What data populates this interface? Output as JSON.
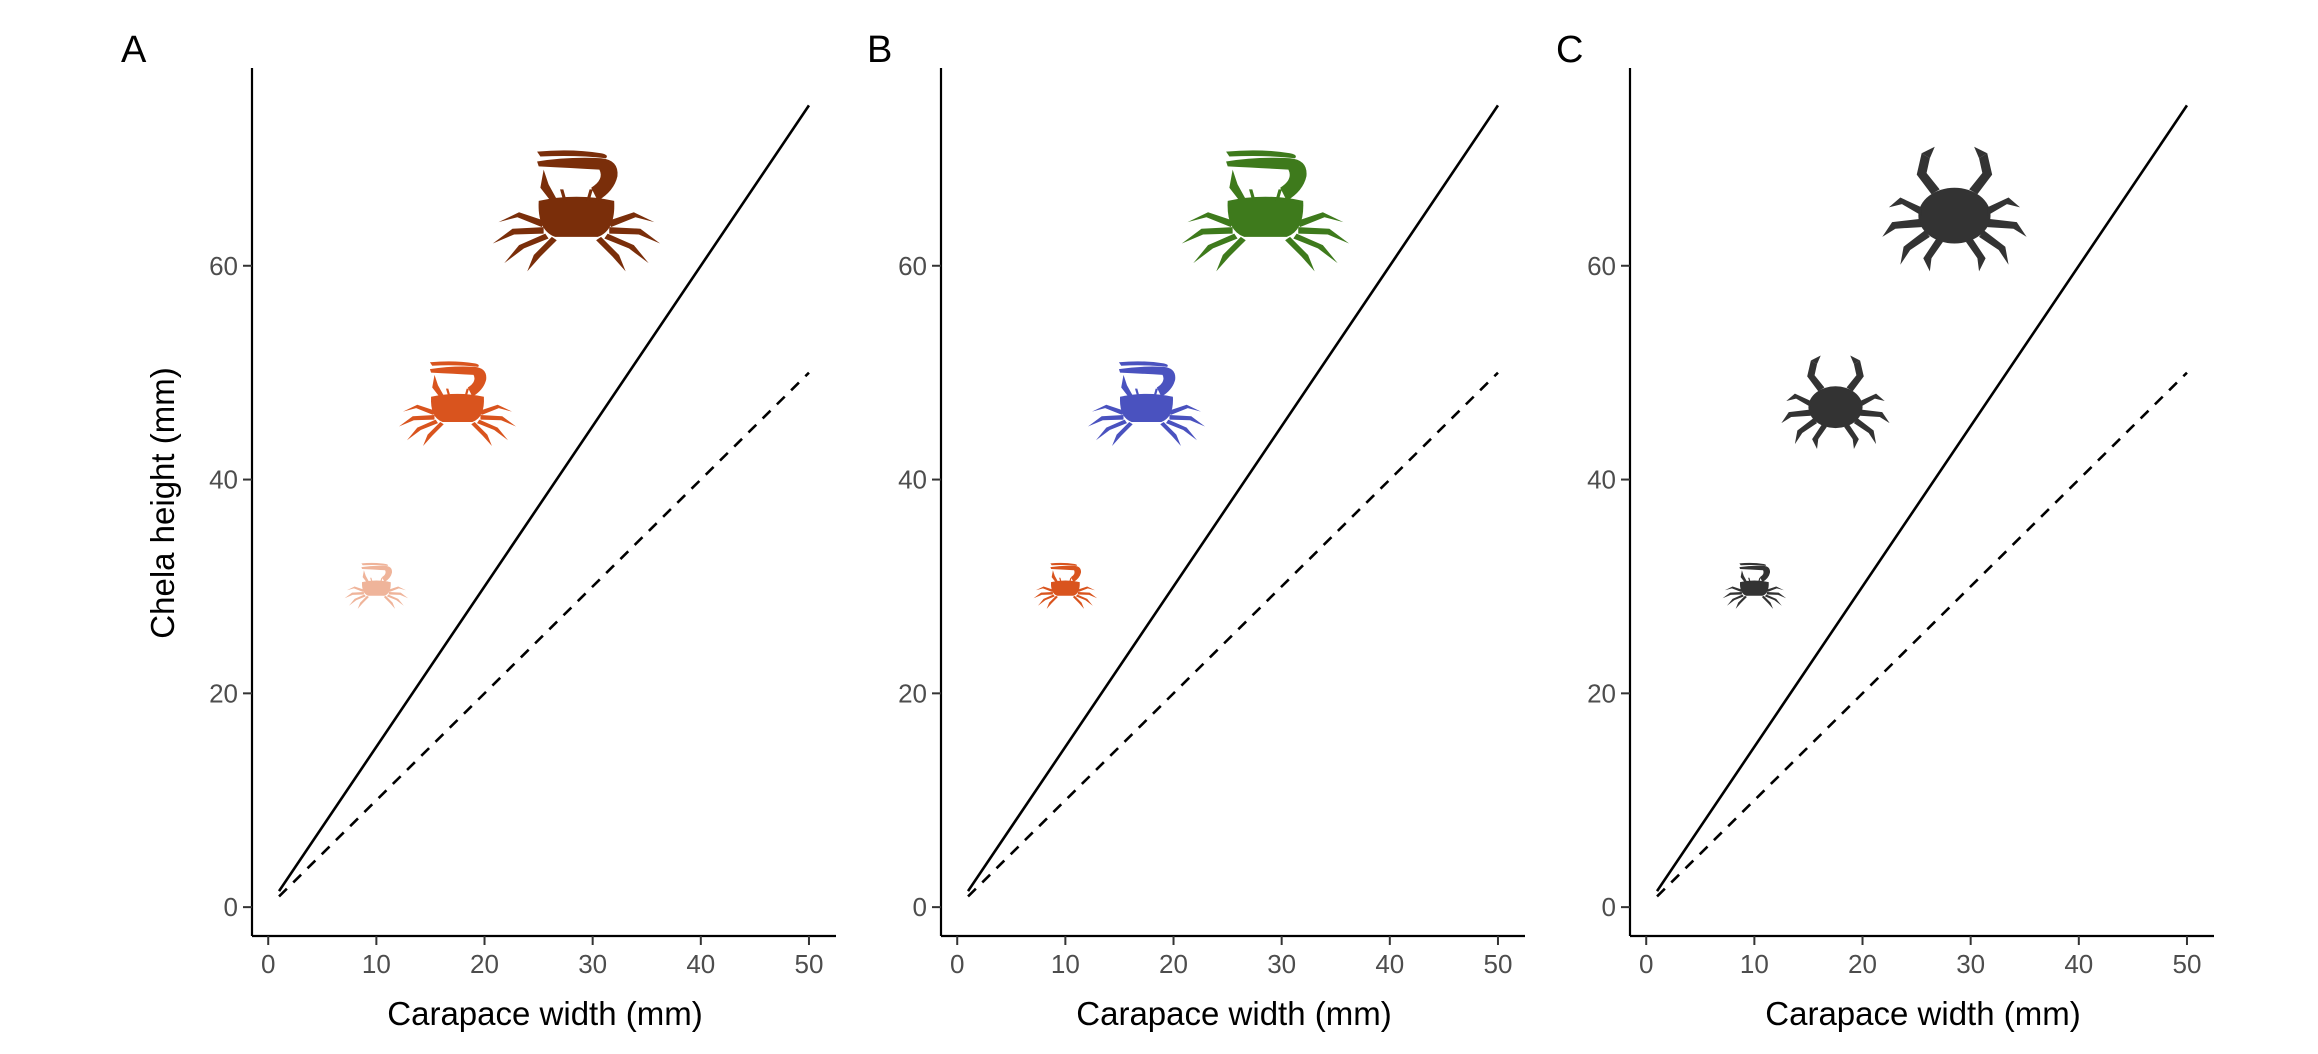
{
  "figure": {
    "panels": [
      {
        "letter": "A",
        "xlabel": "Carapace width (mm)",
        "ylabel": "Chela height (mm)",
        "crabs": [
          {
            "icon": "fiddler-crab-icon",
            "color": "#7a2e0a",
            "x": 28.5,
            "y": 65,
            "scale": 1.0
          },
          {
            "icon": "fiddler-crab-icon",
            "color": "#d9541e",
            "x": 17.5,
            "y": 47,
            "scale": 0.7
          },
          {
            "icon": "fiddler-crab-icon",
            "color": "#efb49a",
            "x": 10,
            "y": 30,
            "scale": 0.38
          }
        ]
      },
      {
        "letter": "B",
        "xlabel": "Carapace width (mm)",
        "ylabel": "",
        "crabs": [
          {
            "icon": "fiddler-crab-icon",
            "color": "#3e7a1c",
            "x": 28.5,
            "y": 65,
            "scale": 1.0
          },
          {
            "icon": "fiddler-crab-icon",
            "color": "#4a52bf",
            "x": 17.5,
            "y": 47,
            "scale": 0.7
          },
          {
            "icon": "fiddler-crab-icon",
            "color": "#d9541e",
            "x": 10,
            "y": 30,
            "scale": 0.38
          }
        ]
      },
      {
        "letter": "C",
        "xlabel": "Carapace width (mm)",
        "ylabel": "",
        "crabs": [
          {
            "icon": "swimming-crab-icon",
            "color": "#333333",
            "x": 28.5,
            "y": 65,
            "scale": 1.0
          },
          {
            "icon": "swimming-crab-icon",
            "color": "#333333",
            "x": 17.5,
            "y": 47,
            "scale": 0.75
          },
          {
            "icon": "fiddler-crab-icon",
            "color": "#333333",
            "x": 10,
            "y": 30,
            "scale": 0.38
          }
        ]
      }
    ]
  },
  "chart_data": [
    {
      "type": "line",
      "panel": "A",
      "title": "",
      "xlabel": "Carapace width (mm)",
      "ylabel": "Chela height (mm)",
      "xlim": [
        -1.5,
        52.5
      ],
      "ylim": [
        -2.7,
        78.5
      ],
      "xticks": [
        0,
        10,
        20,
        30,
        40,
        50
      ],
      "yticks": [
        0,
        20,
        40,
        60
      ],
      "grid": false,
      "series": [
        {
          "style": "solid",
          "x": [
            1,
            50
          ],
          "y": [
            1.5,
            75
          ]
        },
        {
          "style": "dashed",
          "x": [
            1,
            50
          ],
          "y": [
            1,
            50
          ]
        }
      ]
    },
    {
      "type": "line",
      "panel": "B",
      "title": "",
      "xlabel": "Carapace width (mm)",
      "ylabel": "",
      "xlim": [
        -1.5,
        52.5
      ],
      "ylim": [
        -2.7,
        78.5
      ],
      "xticks": [
        0,
        10,
        20,
        30,
        40,
        50
      ],
      "yticks": [
        0,
        20,
        40,
        60
      ],
      "grid": false,
      "series": [
        {
          "style": "solid",
          "x": [
            1,
            50
          ],
          "y": [
            1.5,
            75
          ]
        },
        {
          "style": "dashed",
          "x": [
            1,
            50
          ],
          "y": [
            1,
            50
          ]
        }
      ]
    },
    {
      "type": "line",
      "panel": "C",
      "title": "",
      "xlabel": "Carapace width (mm)",
      "ylabel": "",
      "xlim": [
        -1.5,
        52.5
      ],
      "ylim": [
        -2.7,
        78.5
      ],
      "xticks": [
        0,
        10,
        20,
        30,
        40,
        50
      ],
      "yticks": [
        0,
        20,
        40,
        60
      ],
      "grid": false,
      "series": [
        {
          "style": "solid",
          "x": [
            1,
            50
          ],
          "y": [
            1.5,
            75
          ]
        },
        {
          "style": "dashed",
          "x": [
            1,
            50
          ],
          "y": [
            1,
            50
          ]
        }
      ]
    }
  ]
}
